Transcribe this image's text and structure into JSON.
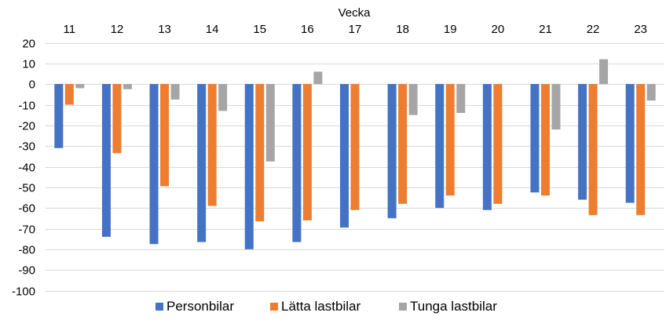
{
  "chart_data": {
    "type": "bar",
    "xlabel": "Vecka",
    "x_axis_position": "top",
    "categories": [
      "11",
      "12",
      "13",
      "14",
      "15",
      "16",
      "17",
      "18",
      "19",
      "20",
      "21",
      "22",
      "23"
    ],
    "ylim": [
      -100,
      20
    ],
    "yticks": [
      20,
      10,
      0,
      -10,
      -20,
      -30,
      -40,
      -50,
      -60,
      -70,
      -80,
      -90,
      -100
    ],
    "grid": true,
    "legend_position": "bottom",
    "series": [
      {
        "name": "Personbilar",
        "color": "#4472c4",
        "values": [
          -31,
          -74,
          -77.5,
          -76.5,
          -80,
          -76.5,
          -69.5,
          -65,
          -60,
          -61,
          -52.5,
          -56,
          -57.5
        ]
      },
      {
        "name": "Lätta lastbilar",
        "color": "#ed7d31",
        "values": [
          -10,
          -33.5,
          -49.5,
          -59,
          -66.5,
          -66,
          -61,
          -58,
          -54,
          -58,
          -54,
          -63.5,
          -63.5
        ]
      },
      {
        "name": "Tunga lastbilar",
        "color": "#a5a5a5",
        "values": [
          -2,
          -2.5,
          -7.5,
          -13,
          -37.5,
          6,
          0,
          -15,
          -14,
          0,
          -22,
          12,
          -8
        ]
      }
    ]
  }
}
